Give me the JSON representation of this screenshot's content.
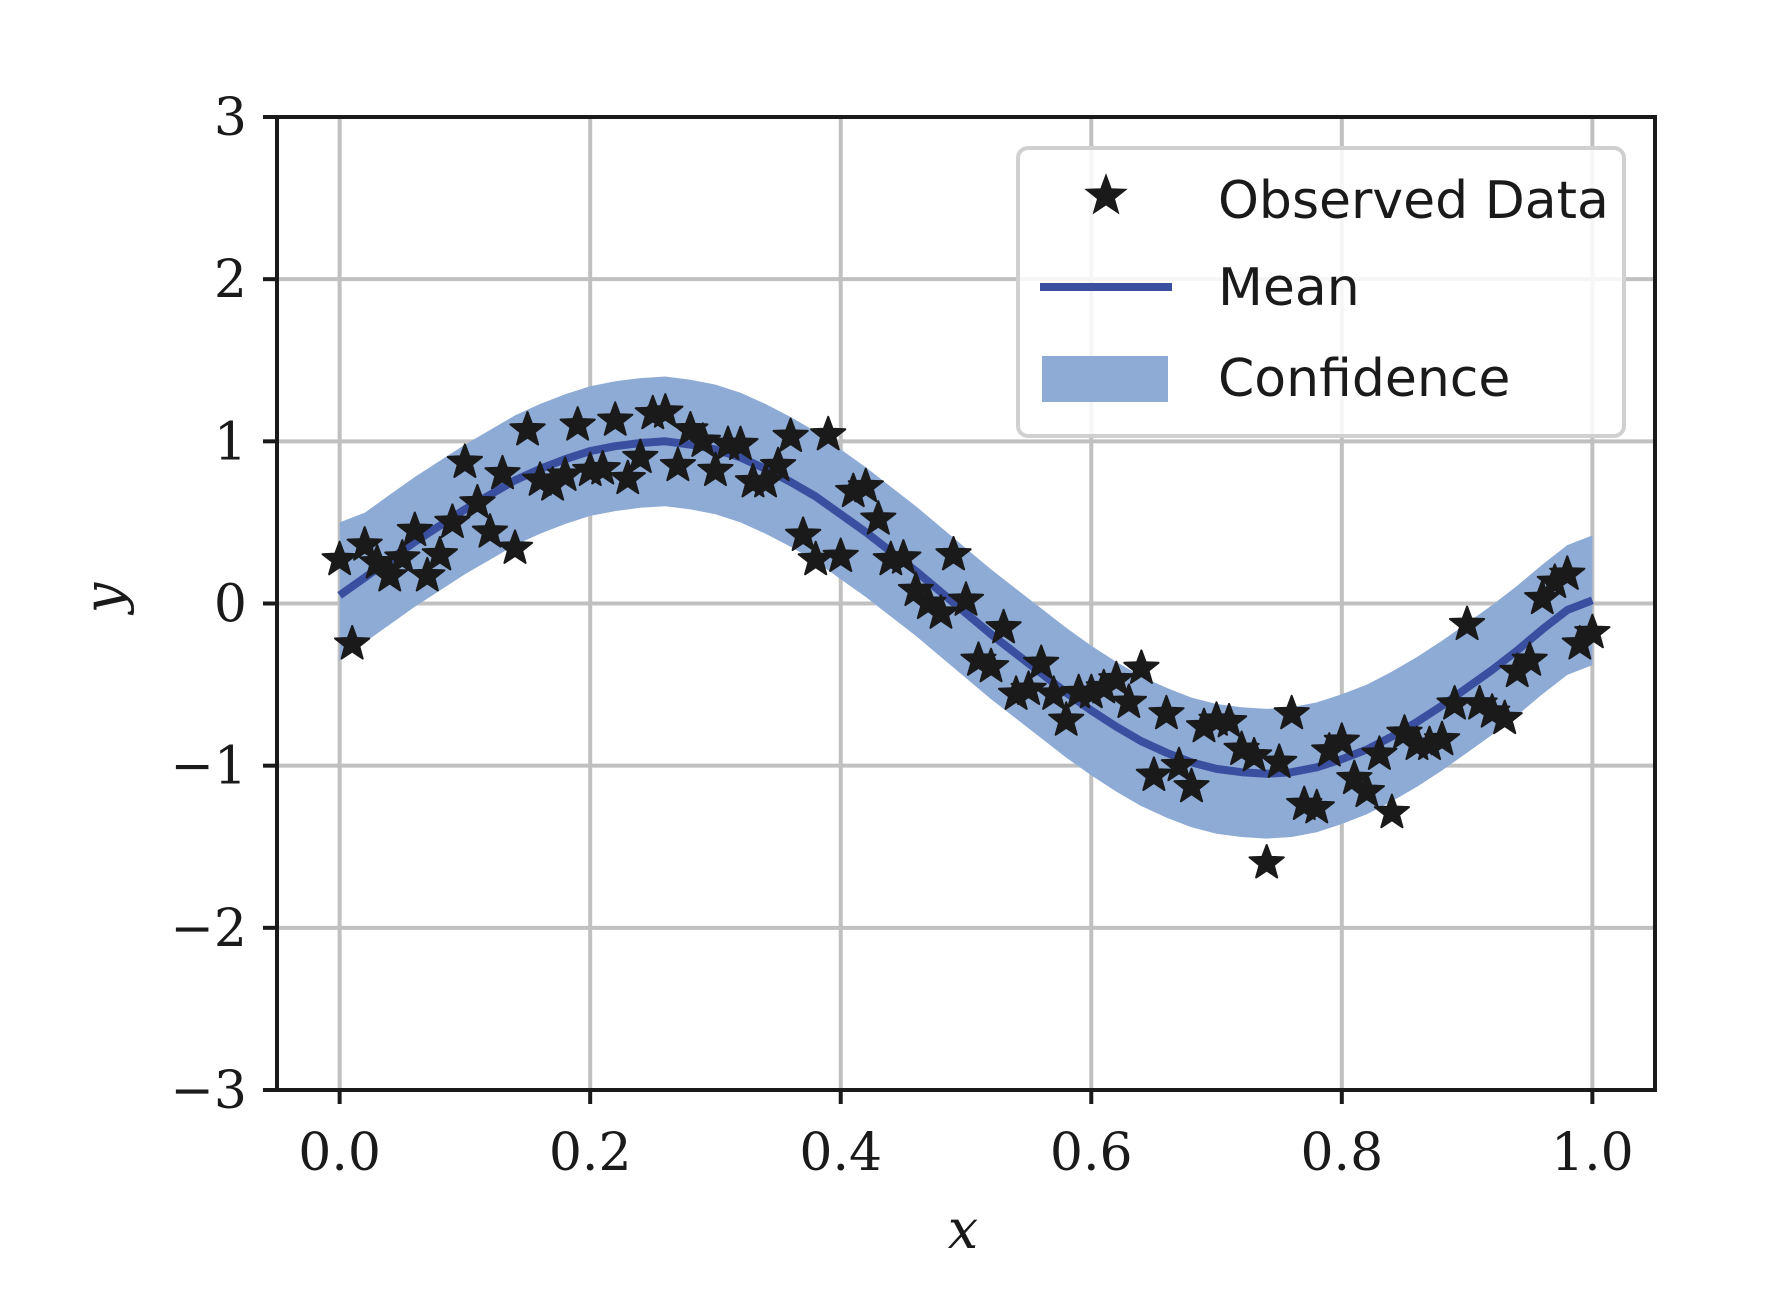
{
  "chart_data": {
    "type": "line",
    "title": "",
    "xlabel": "x",
    "ylabel": "y",
    "xlim": [
      -0.05,
      1.05
    ],
    "ylim": [
      -3,
      3
    ],
    "xticks": [
      0.0,
      0.2,
      0.4,
      0.6,
      0.8,
      1.0
    ],
    "xtick_labels": [
      "0.0",
      "0.2",
      "0.4",
      "0.6",
      "0.8",
      "1.0"
    ],
    "yticks": [
      3,
      2,
      1,
      0,
      -1,
      -2,
      -3
    ],
    "ytick_labels": [
      "3",
      "2",
      "1",
      "0",
      "−1",
      "−2",
      "−3"
    ],
    "grid": true,
    "legend_position": "upper-right",
    "colors": {
      "observed": "#1a1a1a",
      "mean": "#3a4fa0",
      "confidence": "#8eabd6",
      "grid": "#c0c0c0",
      "axes": "#1a1a1a"
    },
    "series": [
      {
        "name": "Observed Data",
        "kind": "scatter",
        "marker": "star",
        "points": [
          [
            0.0,
            0.27
          ],
          [
            0.01,
            -0.25
          ],
          [
            0.02,
            0.36
          ],
          [
            0.03,
            0.25
          ],
          [
            0.04,
            0.17
          ],
          [
            0.05,
            0.28
          ],
          [
            0.06,
            0.45
          ],
          [
            0.07,
            0.17
          ],
          [
            0.08,
            0.3
          ],
          [
            0.09,
            0.5
          ],
          [
            0.1,
            0.87
          ],
          [
            0.11,
            0.62
          ],
          [
            0.12,
            0.44
          ],
          [
            0.13,
            0.8
          ],
          [
            0.14,
            0.34
          ],
          [
            0.15,
            1.07
          ],
          [
            0.16,
            0.76
          ],
          [
            0.17,
            0.73
          ],
          [
            0.18,
            0.79
          ],
          [
            0.19,
            1.1
          ],
          [
            0.2,
            0.82
          ],
          [
            0.21,
            0.83
          ],
          [
            0.22,
            1.13
          ],
          [
            0.23,
            0.77
          ],
          [
            0.24,
            0.9
          ],
          [
            0.25,
            1.17
          ],
          [
            0.26,
            1.18
          ],
          [
            0.27,
            0.85
          ],
          [
            0.28,
            1.07
          ],
          [
            0.29,
            1.0
          ],
          [
            0.3,
            0.82
          ],
          [
            0.31,
            0.98
          ],
          [
            0.32,
            0.98
          ],
          [
            0.33,
            0.75
          ],
          [
            0.34,
            0.75
          ],
          [
            0.35,
            0.85
          ],
          [
            0.36,
            1.03
          ],
          [
            0.37,
            0.42
          ],
          [
            0.38,
            0.27
          ],
          [
            0.39,
            1.04
          ],
          [
            0.4,
            0.29
          ],
          [
            0.41,
            0.69
          ],
          [
            0.42,
            0.72
          ],
          [
            0.43,
            0.52
          ],
          [
            0.44,
            0.27
          ],
          [
            0.45,
            0.28
          ],
          [
            0.46,
            0.08
          ],
          [
            0.47,
            0.0
          ],
          [
            0.48,
            -0.06
          ],
          [
            0.49,
            0.3
          ],
          [
            0.5,
            0.02
          ],
          [
            0.51,
            -0.35
          ],
          [
            0.52,
            -0.39
          ],
          [
            0.53,
            -0.15
          ],
          [
            0.54,
            -0.56
          ],
          [
            0.55,
            -0.53
          ],
          [
            0.56,
            -0.37
          ],
          [
            0.57,
            -0.56
          ],
          [
            0.58,
            -0.72
          ],
          [
            0.59,
            -0.55
          ],
          [
            0.6,
            -0.55
          ],
          [
            0.61,
            -0.52
          ],
          [
            0.62,
            -0.47
          ],
          [
            0.63,
            -0.61
          ],
          [
            0.64,
            -0.4
          ],
          [
            0.65,
            -1.06
          ],
          [
            0.66,
            -0.68
          ],
          [
            0.67,
            -1.0
          ],
          [
            0.68,
            -1.13
          ],
          [
            0.69,
            -0.76
          ],
          [
            0.7,
            -0.72
          ],
          [
            0.71,
            -0.73
          ],
          [
            0.72,
            -0.9
          ],
          [
            0.73,
            -0.94
          ],
          [
            0.74,
            -1.6
          ],
          [
            0.75,
            -0.98
          ],
          [
            0.76,
            -0.68
          ],
          [
            0.77,
            -1.24
          ],
          [
            0.78,
            -1.26
          ],
          [
            0.79,
            -0.91
          ],
          [
            0.8,
            -0.85
          ],
          [
            0.81,
            -1.08
          ],
          [
            0.82,
            -1.16
          ],
          [
            0.83,
            -0.93
          ],
          [
            0.84,
            -1.29
          ],
          [
            0.85,
            -0.8
          ],
          [
            0.86,
            -0.87
          ],
          [
            0.87,
            -0.87
          ],
          [
            0.88,
            -0.84
          ],
          [
            0.89,
            -0.62
          ],
          [
            0.9,
            -0.13
          ],
          [
            0.91,
            -0.62
          ],
          [
            0.92,
            -0.67
          ],
          [
            0.93,
            -0.71
          ],
          [
            0.94,
            -0.42
          ],
          [
            0.95,
            -0.35
          ],
          [
            0.96,
            0.03
          ],
          [
            0.97,
            0.13
          ],
          [
            0.98,
            0.18
          ],
          [
            0.99,
            -0.25
          ],
          [
            1.0,
            -0.18
          ]
        ]
      },
      {
        "name": "Mean",
        "kind": "line",
        "x": [
          0.0,
          0.02,
          0.04,
          0.06,
          0.08,
          0.1,
          0.12,
          0.14,
          0.16,
          0.18,
          0.2,
          0.22,
          0.24,
          0.26,
          0.28,
          0.3,
          0.32,
          0.34,
          0.36,
          0.38,
          0.4,
          0.42,
          0.44,
          0.46,
          0.48,
          0.5,
          0.52,
          0.54,
          0.56,
          0.58,
          0.6,
          0.62,
          0.64,
          0.66,
          0.68,
          0.7,
          0.72,
          0.74,
          0.76,
          0.78,
          0.8,
          0.82,
          0.84,
          0.86,
          0.88,
          0.9,
          0.92,
          0.94,
          0.96,
          0.98,
          1.0
        ],
        "y": [
          0.05,
          0.16,
          0.27,
          0.38,
          0.48,
          0.58,
          0.67,
          0.76,
          0.83,
          0.89,
          0.94,
          0.97,
          0.99,
          1.0,
          0.98,
          0.95,
          0.9,
          0.83,
          0.75,
          0.66,
          0.55,
          0.44,
          0.32,
          0.2,
          0.07,
          -0.06,
          -0.19,
          -0.31,
          -0.43,
          -0.55,
          -0.66,
          -0.76,
          -0.85,
          -0.92,
          -0.98,
          -1.02,
          -1.04,
          -1.05,
          -1.04,
          -1.01,
          -0.96,
          -0.9,
          -0.82,
          -0.73,
          -0.63,
          -0.52,
          -0.41,
          -0.29,
          -0.16,
          -0.04,
          0.02
        ]
      },
      {
        "name": "Confidence",
        "kind": "band",
        "x": [
          0.0,
          0.02,
          0.04,
          0.06,
          0.08,
          0.1,
          0.12,
          0.14,
          0.16,
          0.18,
          0.2,
          0.22,
          0.24,
          0.26,
          0.28,
          0.3,
          0.32,
          0.34,
          0.36,
          0.38,
          0.4,
          0.42,
          0.44,
          0.46,
          0.48,
          0.5,
          0.52,
          0.54,
          0.56,
          0.58,
          0.6,
          0.62,
          0.64,
          0.66,
          0.68,
          0.7,
          0.72,
          0.74,
          0.76,
          0.78,
          0.8,
          0.82,
          0.84,
          0.86,
          0.88,
          0.9,
          0.92,
          0.94,
          0.96,
          0.98,
          1.0
        ],
        "lower": [
          -0.35,
          -0.24,
          -0.13,
          -0.02,
          0.08,
          0.18,
          0.27,
          0.36,
          0.43,
          0.49,
          0.54,
          0.57,
          0.59,
          0.6,
          0.58,
          0.55,
          0.5,
          0.43,
          0.35,
          0.26,
          0.15,
          0.04,
          -0.08,
          -0.2,
          -0.33,
          -0.46,
          -0.59,
          -0.71,
          -0.83,
          -0.95,
          -1.06,
          -1.16,
          -1.25,
          -1.32,
          -1.38,
          -1.42,
          -1.44,
          -1.45,
          -1.44,
          -1.41,
          -1.36,
          -1.3,
          -1.22,
          -1.13,
          -1.03,
          -0.92,
          -0.81,
          -0.69,
          -0.56,
          -0.44,
          -0.38
        ],
        "upper": [
          0.5,
          0.56,
          0.67,
          0.78,
          0.88,
          0.98,
          1.07,
          1.16,
          1.23,
          1.29,
          1.34,
          1.37,
          1.39,
          1.4,
          1.38,
          1.35,
          1.3,
          1.23,
          1.15,
          1.06,
          0.95,
          0.84,
          0.72,
          0.6,
          0.47,
          0.34,
          0.21,
          0.09,
          -0.03,
          -0.15,
          -0.26,
          -0.36,
          -0.45,
          -0.52,
          -0.58,
          -0.62,
          -0.64,
          -0.65,
          -0.64,
          -0.61,
          -0.56,
          -0.5,
          -0.42,
          -0.33,
          -0.23,
          -0.12,
          -0.01,
          0.11,
          0.24,
          0.36,
          0.42
        ]
      }
    ]
  }
}
